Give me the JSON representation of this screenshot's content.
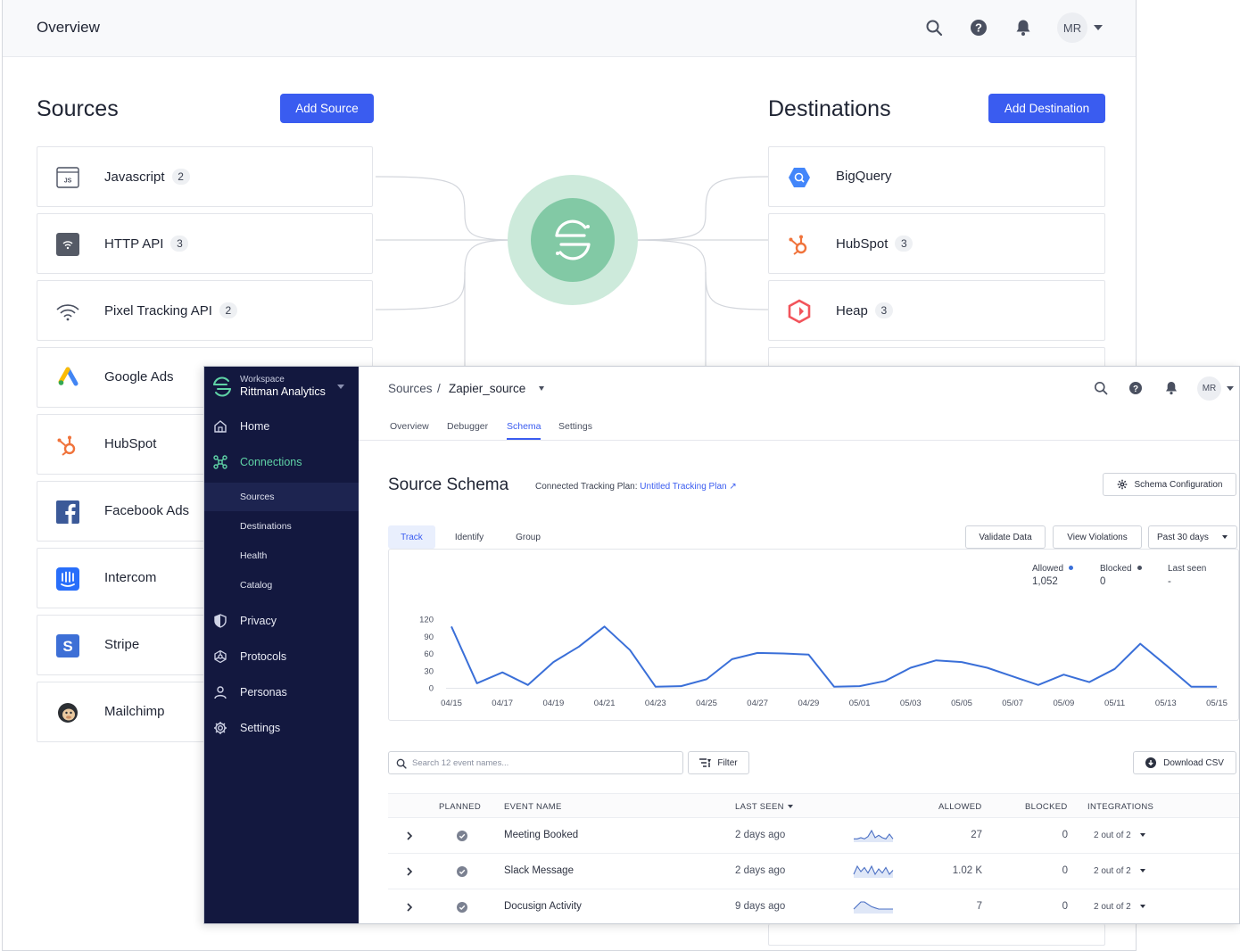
{
  "overview": {
    "title": "Overview",
    "user_initials": "MR",
    "sources_title": "Sources",
    "add_source_label": "Add Source",
    "destinations_title": "Destinations",
    "add_destination_label": "Add Destination",
    "sources": [
      {
        "name": "Javascript",
        "count": "2",
        "icon": "javascript-icon"
      },
      {
        "name": "HTTP API",
        "count": "3",
        "icon": "http-api-icon"
      },
      {
        "name": "Pixel Tracking API",
        "count": "2",
        "icon": "pixel-tracking-icon"
      },
      {
        "name": "Google Ads",
        "count": "",
        "icon": "google-ads-icon"
      },
      {
        "name": "HubSpot",
        "count": "",
        "icon": "hubspot-icon"
      },
      {
        "name": "Facebook Ads",
        "count": "",
        "icon": "facebook-icon"
      },
      {
        "name": "Intercom",
        "count": "",
        "icon": "intercom-icon"
      },
      {
        "name": "Stripe",
        "count": "",
        "icon": "stripe-icon"
      },
      {
        "name": "Mailchimp",
        "count": "",
        "icon": "mailchimp-icon"
      }
    ],
    "destinations": [
      {
        "name": "BigQuery",
        "count": "",
        "icon": "bigquery-icon"
      },
      {
        "name": "HubSpot",
        "count": "3",
        "icon": "hubspot-icon"
      },
      {
        "name": "Heap",
        "count": "3",
        "icon": "heap-icon"
      }
    ],
    "colors": {
      "primary": "#3a5cf0",
      "hub_outer": "#cdeadb",
      "hub_inner": "#82c9a5"
    }
  },
  "workspace": {
    "label": "Workspace",
    "name": "Rittman Analytics",
    "nav": [
      {
        "label": "Home",
        "icon": "home-icon"
      },
      {
        "label": "Connections",
        "icon": "connections-icon"
      },
      {
        "label": "Privacy",
        "icon": "shield-icon"
      },
      {
        "label": "Protocols",
        "icon": "protocols-icon"
      },
      {
        "label": "Personas",
        "icon": "person-icon"
      },
      {
        "label": "Settings",
        "icon": "gear-icon"
      }
    ],
    "subnav": [
      "Sources",
      "Destinations",
      "Health",
      "Catalog"
    ],
    "colors": {
      "sidebar_bg": "#13183f",
      "active_green": "#5fd3a6"
    }
  },
  "source": {
    "breadcrumb_root": "Sources",
    "breadcrumb_sep": "/",
    "breadcrumb_current": "Zapier_source",
    "user_initials": "MR",
    "tabs": [
      "Overview",
      "Debugger",
      "Schema",
      "Settings"
    ],
    "schema_title": "Source Schema",
    "tracking_plan_label": "Connected Tracking Plan:",
    "tracking_plan_link": "Untitled Tracking Plan ↗",
    "schema_config_label": "Schema Configuration",
    "segments": [
      "Track",
      "Identify",
      "Group"
    ],
    "validate_label": "Validate Data",
    "violations_label": "View Violations",
    "range_label": "Past 30 days",
    "stats": {
      "allowed_label": "Allowed",
      "allowed_value": "1,052",
      "blocked_label": "Blocked",
      "blocked_value": "0",
      "last_seen_label": "Last seen",
      "last_seen_value": "-"
    },
    "search_placeholder": "Search 12 event names...",
    "filter_label": "Filter",
    "download_label": "Download CSV",
    "table_headers": {
      "planned": "PLANNED",
      "event": "EVENT NAME",
      "last_seen": "LAST SEEN",
      "allowed": "ALLOWED",
      "blocked": "BLOCKED",
      "integrations": "INTEGRATIONS"
    },
    "rows": [
      {
        "event": "Meeting Booked",
        "last_seen": "2 days ago",
        "allowed": "27",
        "blocked": "0",
        "integrations": "2 out of 2"
      },
      {
        "event": "Slack Message",
        "last_seen": "2 days ago",
        "allowed": "1.02 K",
        "blocked": "0",
        "integrations": "2 out of 2"
      },
      {
        "event": "Docusign Activity",
        "last_seen": "9 days ago",
        "allowed": "7",
        "blocked": "0",
        "integrations": "2 out of 2"
      }
    ]
  },
  "chart_data": {
    "type": "line",
    "x": [
      "04/15",
      "04/16",
      "04/17",
      "04/18",
      "04/19",
      "04/20",
      "04/21",
      "04/22",
      "04/23",
      "04/24",
      "04/25",
      "04/26",
      "04/27",
      "04/28",
      "04/29",
      "04/30",
      "05/01",
      "05/02",
      "05/03",
      "05/04",
      "05/05",
      "05/06",
      "05/07",
      "05/08",
      "05/09",
      "05/10",
      "05/11",
      "05/12",
      "05/13",
      "05/14",
      "05/15"
    ],
    "x_tick_labels": [
      "04/15",
      "04/17",
      "04/19",
      "04/21",
      "04/23",
      "04/25",
      "04/27",
      "04/29",
      "05/01",
      "05/03",
      "05/05",
      "05/07",
      "05/09",
      "05/11",
      "05/13",
      "05/15"
    ],
    "series": [
      {
        "values": [
          107,
          8,
          27,
          5,
          45,
          72,
          107,
          66,
          2,
          3,
          15,
          50,
          61,
          60,
          58,
          2,
          3,
          12,
          35,
          48,
          45,
          35,
          20,
          5,
          23,
          10,
          33,
          77,
          40,
          2,
          2
        ]
      }
    ],
    "yticks": [
      0,
      30,
      60,
      90,
      120
    ],
    "ylim": [
      0,
      120
    ],
    "color": "#3a6fd8",
    "grid": false,
    "sparklines": [
      [
        2,
        2,
        3,
        2,
        4,
        9,
        3,
        5,
        3,
        2,
        6,
        2
      ],
      [
        2,
        8,
        4,
        7,
        3,
        8,
        2,
        6,
        3,
        7,
        2,
        5
      ],
      [
        3,
        6,
        9,
        9,
        7,
        5,
        4,
        3,
        3,
        3,
        3,
        3
      ]
    ]
  }
}
